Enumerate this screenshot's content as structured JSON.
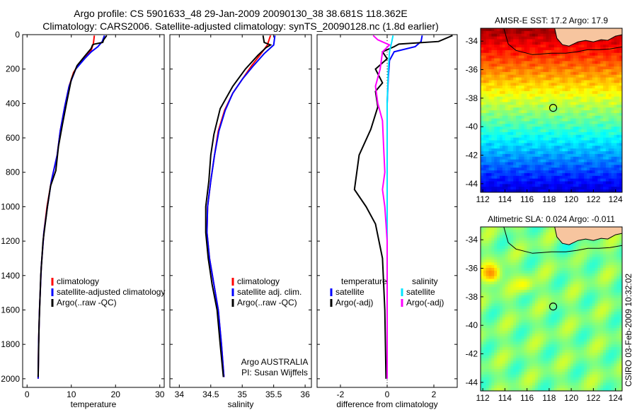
{
  "header": {
    "title_line1": "Argo profile: CS 5901633_48 29-Jan-2009 20090130_38 38.681S 118.362E",
    "title_line2": "Climatology: CARS2006. Satellite-adjusted climatology: synTS_20090128.nc (1.8d earlier)"
  },
  "side_label": "CSIRO 03-Feb-2009 10:32:02",
  "colors": {
    "climatology": "#ff0000",
    "satellite": "#0000ff",
    "argo": "#000000",
    "satellite_salinity": "#00e5ff",
    "argo_adj_salinity": "#ff00ff",
    "land": "#f7c59f"
  },
  "chart_data": [
    {
      "type": "line",
      "xlabel": "temperature",
      "ylabel": "",
      "xlim": [
        -1,
        31
      ],
      "ylim": [
        2050,
        0
      ],
      "xticks": [
        0,
        10,
        20,
        30
      ],
      "yticks": [
        0,
        200,
        400,
        600,
        800,
        1000,
        1200,
        1400,
        1600,
        1800,
        2000
      ],
      "legend_position": "lower-right",
      "legend": [
        {
          "label": "climatology",
          "color": "#ff0000"
        },
        {
          "label": "satellite-adjusted climatology",
          "color": "#0000ff"
        },
        {
          "label": "Argo(..raw -QC)",
          "color": "#000000"
        }
      ],
      "series": [
        {
          "name": "climatology",
          "color": "#ff0000",
          "points": [
            [
              15.2,
              5
            ],
            [
              15,
              50
            ],
            [
              14.5,
              90
            ],
            [
              13.5,
              120
            ],
            [
              12,
              160
            ],
            [
              10.5,
              220
            ],
            [
              9.5,
              300
            ],
            [
              8.5,
              420
            ],
            [
              7.5,
              560
            ],
            [
              6.8,
              700
            ],
            [
              5.5,
              850
            ],
            [
              4.5,
              1000
            ],
            [
              3.8,
              1150
            ],
            [
              3.2,
              1350
            ],
            [
              2.8,
              1600
            ],
            [
              2.6,
              1800
            ],
            [
              2.5,
              2000
            ]
          ]
        },
        {
          "name": "satellite-adjusted climatology",
          "color": "#0000ff",
          "points": [
            [
              17.5,
              5
            ],
            [
              17,
              40
            ],
            [
              16,
              70
            ],
            [
              14.5,
              100
            ],
            [
              13,
              140
            ],
            [
              11,
              200
            ],
            [
              9.5,
              300
            ],
            [
              8.5,
              420
            ],
            [
              7.5,
              560
            ],
            [
              6.8,
              700
            ],
            [
              5.5,
              850
            ],
            [
              4.6,
              1000
            ],
            [
              3.8,
              1150
            ],
            [
              3.2,
              1350
            ],
            [
              2.8,
              1600
            ],
            [
              2.6,
              1800
            ],
            [
              2.5,
              2000
            ]
          ]
        },
        {
          "name": "Argo(..raw -QC)",
          "color": "#000000",
          "points": [
            [
              18,
              5
            ],
            [
              17.3,
              30
            ],
            [
              17.1,
              45
            ],
            [
              15.2,
              55
            ],
            [
              14.8,
              60
            ],
            [
              14.5,
              80
            ],
            [
              13.2,
              120
            ],
            [
              11.3,
              180
            ],
            [
              10,
              260
            ],
            [
              8.9,
              400
            ],
            [
              8,
              520
            ],
            [
              7.1,
              650
            ],
            [
              6.5,
              790
            ],
            [
              5.3,
              880
            ],
            [
              4.6,
              1000
            ],
            [
              3.6,
              1200
            ],
            [
              3.1,
              1400
            ],
            [
              2.7,
              1700
            ],
            [
              2.5,
              1990
            ]
          ]
        }
      ]
    },
    {
      "type": "line",
      "xlabel": "salinity",
      "ylabel": "",
      "xlim": [
        33.85,
        36.1
      ],
      "ylim": [
        2050,
        0
      ],
      "xticks": [
        34,
        34.5,
        35,
        35.5,
        36
      ],
      "yticks": [
        0,
        200,
        400,
        600,
        800,
        1000,
        1200,
        1400,
        1600,
        1800,
        2000
      ],
      "legend_position": "lower-right",
      "legend": [
        {
          "label": "climatology",
          "color": "#ff0000"
        },
        {
          "label": "satellite adj. clim.",
          "color": "#0000ff"
        },
        {
          "label": "Argo(..raw -QC)",
          "color": "#000000"
        }
      ],
      "annotation": [
        "Argo AUSTRALIA",
        "PI: Susan Wijffels"
      ],
      "series": [
        {
          "name": "climatology",
          "color": "#ff0000",
          "points": [
            [
              35.45,
              5
            ],
            [
              35.4,
              60
            ],
            [
              35.3,
              110
            ],
            [
              35.15,
              180
            ],
            [
              35,
              260
            ],
            [
              34.85,
              340
            ],
            [
              34.72,
              440
            ],
            [
              34.62,
              560
            ],
            [
              34.56,
              700
            ],
            [
              34.5,
              850
            ],
            [
              34.45,
              1000
            ],
            [
              34.44,
              1150
            ],
            [
              34.48,
              1300
            ],
            [
              34.55,
              1450
            ],
            [
              34.62,
              1600
            ],
            [
              34.67,
              1800
            ],
            [
              34.71,
              1990
            ]
          ]
        },
        {
          "name": "satellite adj. clim.",
          "color": "#0000ff",
          "points": [
            [
              35.52,
              5
            ],
            [
              35.5,
              60
            ],
            [
              35.35,
              110
            ],
            [
              35.18,
              180
            ],
            [
              35,
              260
            ],
            [
              34.85,
              340
            ],
            [
              34.73,
              440
            ],
            [
              34.63,
              560
            ],
            [
              34.56,
              700
            ],
            [
              34.5,
              850
            ],
            [
              34.45,
              1000
            ],
            [
              34.44,
              1150
            ],
            [
              34.48,
              1300
            ],
            [
              34.55,
              1450
            ],
            [
              34.62,
              1600
            ],
            [
              34.67,
              1800
            ],
            [
              34.71,
              1990
            ]
          ]
        },
        {
          "name": "Argo(..raw -QC)",
          "color": "#000000",
          "points": [
            [
              35.33,
              5
            ],
            [
              35.35,
              45
            ],
            [
              35.45,
              60
            ],
            [
              35.38,
              75
            ],
            [
              35.25,
              120
            ],
            [
              35.05,
              200
            ],
            [
              34.85,
              300
            ],
            [
              34.65,
              430
            ],
            [
              34.55,
              580
            ],
            [
              34.5,
              700
            ],
            [
              34.47,
              850
            ],
            [
              34.42,
              1000
            ],
            [
              34.42,
              1150
            ],
            [
              34.46,
              1300
            ],
            [
              34.52,
              1450
            ],
            [
              34.6,
              1600
            ],
            [
              34.65,
              1800
            ],
            [
              34.7,
              1990
            ]
          ]
        }
      ]
    },
    {
      "type": "line",
      "xlabel": "difference from climatology",
      "ylabel": "",
      "xlim": [
        -3,
        3
      ],
      "ylim": [
        2050,
        0
      ],
      "xticks": [
        -2,
        0,
        2
      ],
      "yticks": [
        0,
        200,
        400,
        600,
        800,
        1000,
        1200,
        1400,
        1600,
        1800,
        2000
      ],
      "legend_position": "lower-center",
      "legend": [
        {
          "label": "temperature",
          "color": null
        },
        {
          "label": "satellite",
          "color": "#0000ff"
        },
        {
          "label": "Argo(-adj)",
          "color": "#000000"
        },
        {
          "label": "salinity",
          "color": null
        },
        {
          "label": "satellite",
          "color": "#00e5ff"
        },
        {
          "label": "Argo(-adj)",
          "color": "#ff00ff"
        }
      ],
      "series": [
        {
          "name": "temperature satellite",
          "color": "#0000ff",
          "points": [
            [
              1.5,
              5
            ],
            [
              1.45,
              40
            ],
            [
              1.2,
              70
            ],
            [
              0.3,
              100
            ],
            [
              0.1,
              150
            ],
            [
              0.05,
              250
            ],
            [
              0,
              400
            ],
            [
              0,
              2000
            ]
          ]
        },
        {
          "name": "temperature Argo(-adj)",
          "color": "#000000",
          "points": [
            [
              2.8,
              5
            ],
            [
              2.2,
              40
            ],
            [
              0.5,
              55
            ],
            [
              0.3,
              70
            ],
            [
              -0.2,
              100
            ],
            [
              0,
              140
            ],
            [
              -0.5,
              200
            ],
            [
              -0.2,
              280
            ],
            [
              -0.5,
              330
            ],
            [
              -0.4,
              420
            ],
            [
              -0.7,
              550
            ],
            [
              -1.2,
              700
            ],
            [
              -1.3,
              800
            ],
            [
              -1.4,
              900
            ],
            [
              -0.9,
              1000
            ],
            [
              -0.5,
              1100
            ],
            [
              -0.2,
              1300
            ],
            [
              -0.1,
              1600
            ],
            [
              -0.05,
              2000
            ]
          ]
        },
        {
          "name": "salinity satellite",
          "color": "#00e5ff",
          "points": [
            [
              0.25,
              5
            ],
            [
              0.2,
              40
            ],
            [
              0.1,
              100
            ],
            [
              0.05,
              200
            ],
            [
              0,
              400
            ],
            [
              0,
              2000
            ]
          ]
        },
        {
          "name": "salinity Argo(-adj)",
          "color": "#ff00ff",
          "points": [
            [
              -0.6,
              5
            ],
            [
              -0.4,
              30
            ],
            [
              0.1,
              60
            ],
            [
              -0.2,
              100
            ],
            [
              -0.3,
              200
            ],
            [
              -0.5,
              300
            ],
            [
              -0.4,
              400
            ],
            [
              -0.2,
              500
            ],
            [
              -0.15,
              650
            ],
            [
              -0.1,
              800
            ],
            [
              -0.2,
              900
            ],
            [
              -0.1,
              1000
            ],
            [
              -0.05,
              1100
            ],
            [
              0,
              1200
            ],
            [
              0,
              2000
            ]
          ]
        }
      ]
    },
    {
      "type": "heatmap",
      "title": "AMSR-E SST: 17.2 Argo: 17.9",
      "xlim": [
        111.8,
        124.6
      ],
      "ylim": [
        -44.6,
        -33.1
      ],
      "xticks": [
        112,
        114,
        116,
        118,
        120,
        122,
        124
      ],
      "yticks": [
        -34,
        -36,
        -38,
        -40,
        -42,
        -44
      ],
      "marker": {
        "lon": 118.362,
        "lat": -38.681
      },
      "colormap": "jet",
      "field_description": "warm (red) near coast in north, cooling to blue at south"
    },
    {
      "type": "heatmap",
      "title": "Altimetric SLA: 0.024 Argo: -0.011",
      "xlim": [
        111.8,
        124.6
      ],
      "ylim": [
        -44.6,
        -33.1
      ],
      "xticks": [
        112,
        114,
        116,
        118,
        120,
        122,
        124
      ],
      "yticks": [
        -34,
        -36,
        -38,
        -40,
        -42,
        -44
      ],
      "marker": {
        "lon": 118.362,
        "lat": -38.681
      },
      "colormap": "jet"
    }
  ]
}
